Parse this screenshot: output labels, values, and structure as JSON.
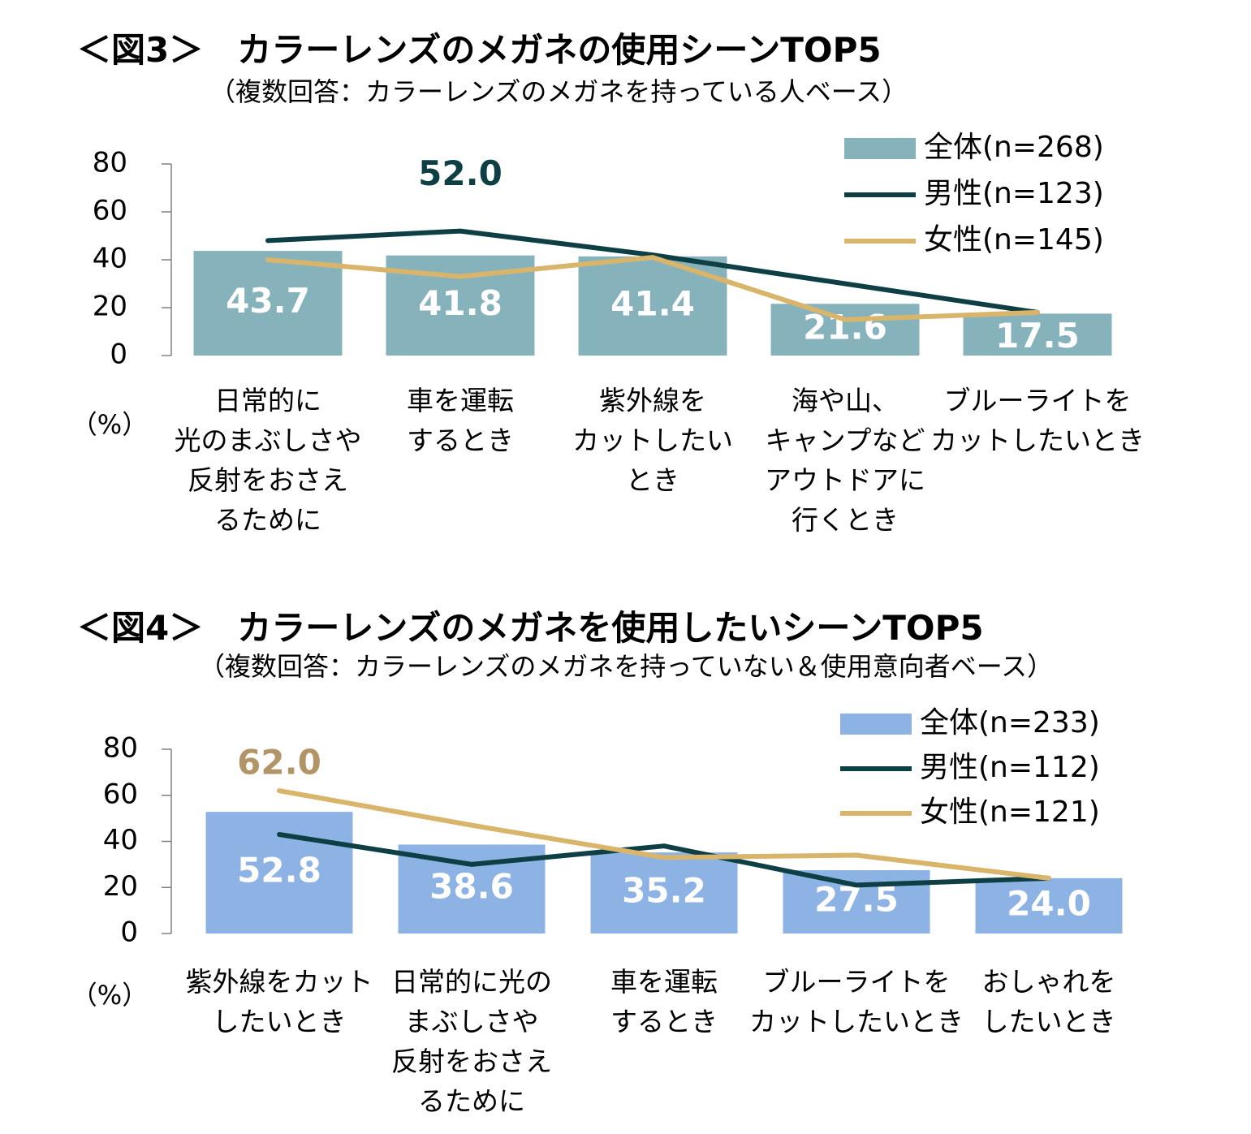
{
  "chart_data": [
    {
      "type": "bar",
      "title": "＜図3＞　カラーレンズのメガネの使用シーンTOP5",
      "subtitle": "（複数回答：カラーレンズのメガネを持っている人ベース）",
      "ylabel": "（%）",
      "ylim": [
        0,
        80
      ],
      "yticks": [
        0,
        20,
        40,
        60,
        80
      ],
      "categories": [
        [
          "日常的に",
          "光のまぶしさや",
          "反射をおさえ",
          "るために"
        ],
        [
          "車を運転",
          "するとき"
        ],
        [
          "紫外線を",
          "カットしたい",
          "とき"
        ],
        [
          "海や山、",
          "キャンプなど",
          "アウトドアに",
          "行くとき"
        ],
        [
          "ブルーライトを",
          "カットしたいとき"
        ]
      ],
      "series": [
        {
          "name": "全体(n=268)",
          "kind": "bar",
          "color": "#86b3bb",
          "values": [
            43.7,
            41.8,
            41.4,
            21.6,
            17.5
          ],
          "labels": [
            "43.7",
            "41.8",
            "41.4",
            "21.6",
            "17.5"
          ]
        },
        {
          "name": "男性(n=123)",
          "kind": "line",
          "color": "#0e3f45",
          "values": [
            48.0,
            52.0,
            42.0,
            30.0,
            18.0
          ]
        },
        {
          "name": "女性(n=145)",
          "kind": "line",
          "color": "#d9b56b",
          "values": [
            40.0,
            33.0,
            41.0,
            15.0,
            18.0
          ]
        }
      ],
      "peak_annotation": {
        "text": "52.0",
        "series": 1,
        "index": 1,
        "color": "#0e3f45"
      }
    },
    {
      "type": "bar",
      "title": "＜図4＞　カラーレンズのメガネを使用したいシーンTOP5",
      "subtitle": "（複数回答：カラーレンズのメガネを持っていない＆使用意向者ベース）",
      "ylabel": "（%）",
      "ylim": [
        0,
        80
      ],
      "yticks": [
        0,
        20,
        40,
        60,
        80
      ],
      "categories": [
        [
          "紫外線をカット",
          "したいとき"
        ],
        [
          "日常的に光の",
          "まぶしさや",
          "反射をおさえ",
          "るために"
        ],
        [
          "車を運転",
          "するとき"
        ],
        [
          "ブルーライトを",
          "カットしたいとき"
        ],
        [
          "おしゃれを",
          "したいとき"
        ]
      ],
      "series": [
        {
          "name": "全体(n=233)",
          "kind": "bar",
          "color": "#8db2e4",
          "values": [
            52.8,
            38.6,
            35.2,
            27.5,
            24.0
          ],
          "labels": [
            "52.8",
            "38.6",
            "35.2",
            "27.5",
            "24.0"
          ]
        },
        {
          "name": "男性(n=112)",
          "kind": "line",
          "color": "#0e3f45",
          "values": [
            43.0,
            30.0,
            38.0,
            21.0,
            24.0
          ]
        },
        {
          "name": "女性(n=121)",
          "kind": "line",
          "color": "#d9b56b",
          "values": [
            62.0,
            47.0,
            33.0,
            34.0,
            24.0
          ]
        }
      ],
      "peak_annotation": {
        "text": "62.0",
        "series": 2,
        "index": 0,
        "color": "#b29466"
      }
    }
  ]
}
